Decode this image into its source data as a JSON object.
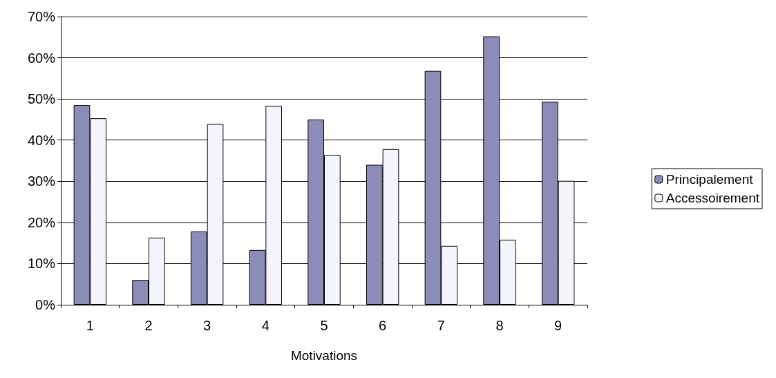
{
  "chart_data": {
    "type": "bar",
    "xlabel": "Motivations",
    "categories": [
      "1",
      "2",
      "3",
      "4",
      "5",
      "6",
      "7",
      "8",
      "9"
    ],
    "series": [
      {
        "name": "Principalement",
        "color": "#8c8cb8",
        "values": [
          48.5,
          6,
          17.8,
          13.3,
          45,
          34,
          56.8,
          65.2,
          49.3
        ]
      },
      {
        "name": "Accessoirement",
        "color": "#f4f4fc",
        "values": [
          45.3,
          16.3,
          43.9,
          48.3,
          36.4,
          37.8,
          14.3,
          15.8,
          30.1
        ]
      }
    ],
    "ylim": [
      0,
      70
    ],
    "yticks": [
      {
        "value": 0,
        "label": "0%"
      },
      {
        "value": 10,
        "label": "10%"
      },
      {
        "value": 20,
        "label": "20%"
      },
      {
        "value": 30,
        "label": "30%"
      },
      {
        "value": 40,
        "label": "40%"
      },
      {
        "value": 50,
        "label": "50%"
      },
      {
        "value": 60,
        "label": "60%"
      },
      {
        "value": 70,
        "label": "70%"
      }
    ],
    "grid": "y",
    "legend": "right"
  }
}
